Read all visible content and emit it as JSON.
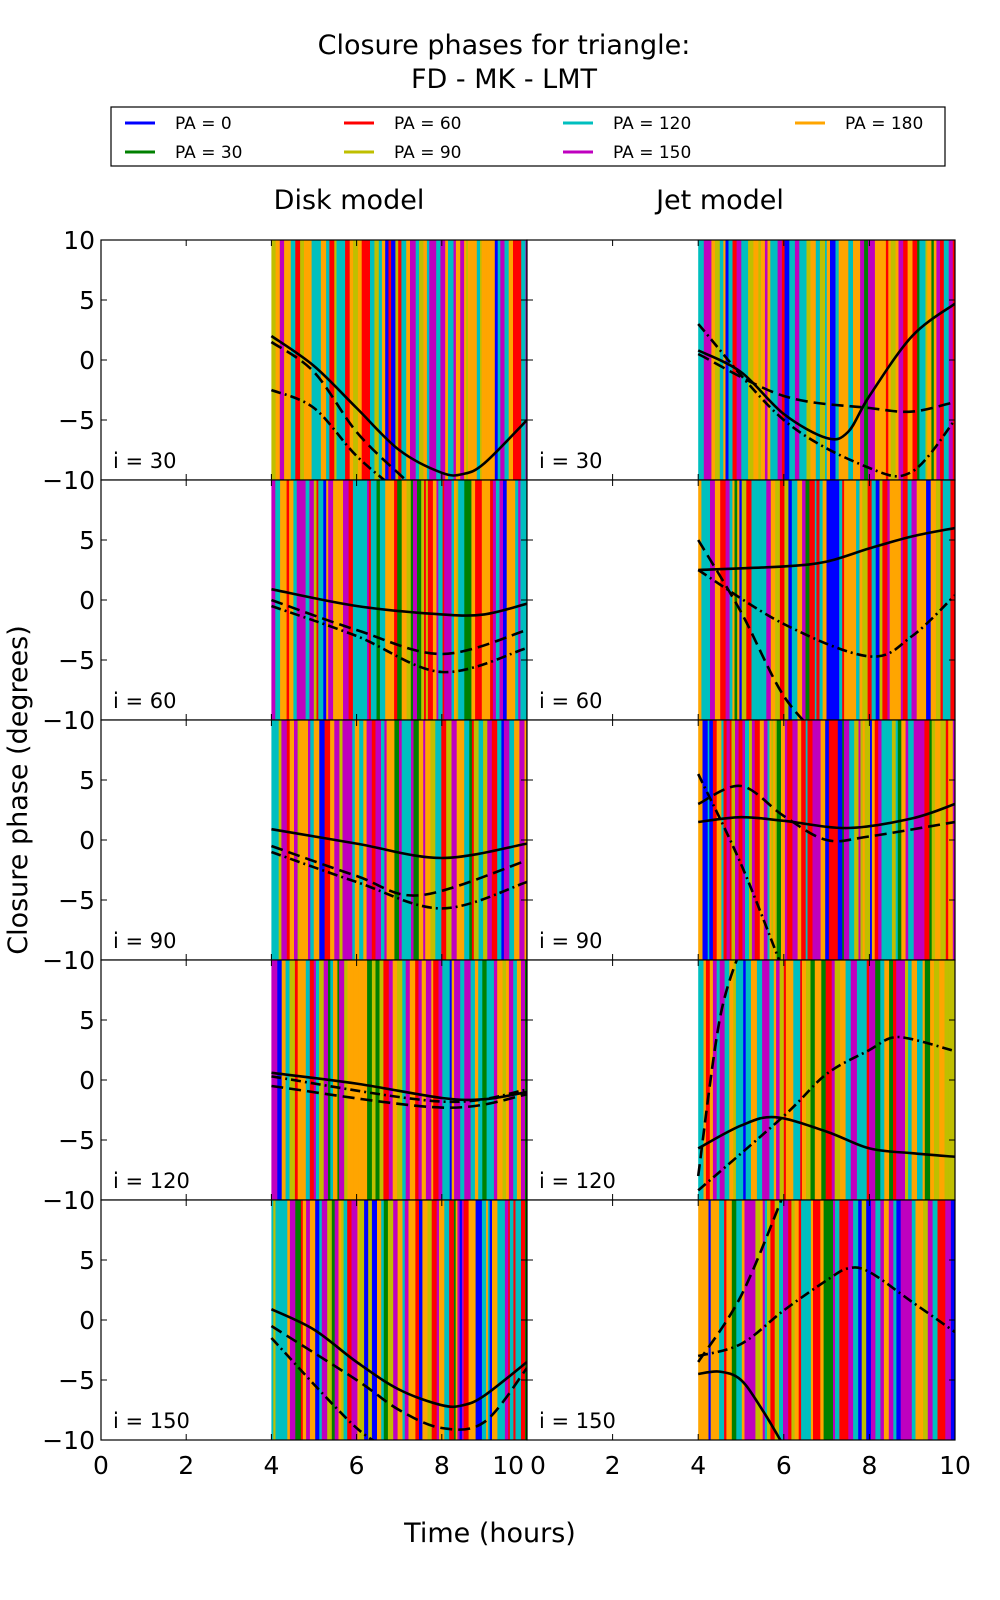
{
  "chart_data": {
    "type": "line",
    "title": "Closure phases for triangle:",
    "subtitle": "FD - MK - LMT",
    "xlabel": "Time (hours)",
    "ylabel": "Closure phase (degrees)",
    "xlim": [
      0,
      10
    ],
    "ylim": [
      -10,
      10
    ],
    "xticks": [
      0,
      2,
      4,
      6,
      8,
      10
    ],
    "yticks": [
      10,
      5,
      0,
      -5,
      -10
    ],
    "ytick_labels": [
      "10",
      "5",
      "0",
      "−5",
      "−10"
    ],
    "xtick_labels": [
      "0",
      "2",
      "4",
      "6",
      "8",
      "10"
    ],
    "grid": false,
    "legend_placement": "top",
    "legend": [
      {
        "label": "PA = 0",
        "color": "#0000ff"
      },
      {
        "label": "PA = 30",
        "color": "#008000"
      },
      {
        "label": "PA = 60",
        "color": "#ff0000"
      },
      {
        "label": "PA = 90",
        "color": "#bfbf00"
      },
      {
        "label": "PA = 120",
        "color": "#00bfbf"
      },
      {
        "label": "PA = 150",
        "color": "#bf00bf"
      },
      {
        "label": "PA = 180",
        "color": "#ffa500"
      }
    ],
    "columns": [
      "Disk model",
      "Jet model"
    ],
    "data_time_range": [
      4,
      10
    ],
    "panels": [
      {
        "column": 0,
        "label": "i = 30",
        "curves": [
          {
            "style": "solid",
            "x": [
              4,
              5,
              6,
              7,
              8,
              8.5,
              9,
              10
            ],
            "y": [
              2,
              -0.5,
              -4,
              -7.5,
              -9.4,
              -9.5,
              -8.6,
              -5
            ]
          },
          {
            "style": "dashed",
            "x": [
              4,
              5,
              6,
              7,
              7.5
            ],
            "y": [
              1.5,
              -1,
              -6,
              -9.5,
              -11
            ]
          },
          {
            "style": "dashdot",
            "x": [
              4,
              5,
              6,
              7
            ],
            "y": [
              -2.5,
              -4,
              -8,
              -11
            ]
          }
        ]
      },
      {
        "column": 1,
        "label": "i = 30",
        "curves": [
          {
            "style": "solid",
            "x": [
              4,
              5,
              6,
              7,
              7.5,
              8,
              9,
              10
            ],
            "y": [
              0.8,
              -1,
              -4.5,
              -6.5,
              -6,
              -3,
              2,
              4.7
            ]
          },
          {
            "style": "dashed",
            "x": [
              4,
              6,
              8,
              9,
              10
            ],
            "y": [
              0.5,
              -3,
              -4,
              -4.3,
              -3.5
            ]
          },
          {
            "style": "dashdot",
            "x": [
              4,
              6,
              8,
              9,
              10
            ],
            "y": [
              3,
              -5,
              -9,
              -9.3,
              -5
            ]
          }
        ]
      },
      {
        "column": 0,
        "label": "i = 60",
        "curves": [
          {
            "style": "solid",
            "x": [
              4,
              6,
              8,
              9,
              10
            ],
            "y": [
              0.9,
              -0.5,
              -1.2,
              -1.2,
              -0.3
            ]
          },
          {
            "style": "dashed",
            "x": [
              4,
              6,
              8,
              10
            ],
            "y": [
              0,
              -2.5,
              -4.5,
              -2.5
            ]
          },
          {
            "style": "dashdot",
            "x": [
              4,
              6,
              8,
              10
            ],
            "y": [
              -0.5,
              -3,
              -6,
              -4
            ]
          }
        ]
      },
      {
        "column": 1,
        "label": "i = 60",
        "curves": [
          {
            "style": "solid",
            "x": [
              4,
              6,
              7,
              8,
              9,
              10
            ],
            "y": [
              2.5,
              2.8,
              3.2,
              4.3,
              5.3,
              6
            ]
          },
          {
            "style": "dashdot",
            "x": [
              4,
              6,
              8,
              9,
              10
            ],
            "y": [
              2.5,
              -2,
              -4.7,
              -3,
              0.4
            ]
          },
          {
            "style": "dashed",
            "x": [
              4,
              5,
              6,
              7
            ],
            "y": [
              5,
              -1,
              -8,
              -12
            ]
          }
        ]
      },
      {
        "column": 0,
        "label": "i = 90",
        "curves": [
          {
            "style": "solid",
            "x": [
              4,
              6,
              8,
              10
            ],
            "y": [
              0.9,
              -0.3,
              -1.5,
              -0.3
            ]
          },
          {
            "style": "dashed",
            "x": [
              4,
              6,
              7.5,
              10
            ],
            "y": [
              -0.5,
              -3,
              -4.6,
              -1.7
            ]
          },
          {
            "style": "dashdot",
            "x": [
              4,
              6,
              8,
              10
            ],
            "y": [
              -1,
              -3.5,
              -5.7,
              -3.5
            ]
          }
        ]
      },
      {
        "column": 1,
        "label": "i = 90",
        "curves": [
          {
            "style": "solid",
            "x": [
              4,
              5,
              6,
              7.5,
              9,
              10
            ],
            "y": [
              1.5,
              1.9,
              1.6,
              1,
              1.8,
              3
            ]
          },
          {
            "style": "dashed",
            "x": [
              4,
              5,
              6,
              7,
              8,
              10
            ],
            "y": [
              3,
              4.5,
              2,
              0,
              0.3,
              1.5
            ]
          },
          {
            "style": "dashdot",
            "x": [
              4,
              5,
              6
            ],
            "y": [
              5.5,
              -2,
              -11
            ]
          }
        ]
      },
      {
        "column": 0,
        "label": "i = 120",
        "curves": [
          {
            "style": "solid",
            "x": [
              4,
              6,
              8,
              9,
              10
            ],
            "y": [
              0.6,
              -0.3,
              -1.5,
              -1.6,
              -1
            ]
          },
          {
            "style": "dashed",
            "x": [
              4,
              8,
              10
            ],
            "y": [
              -0.5,
              -2.3,
              -1.2
            ]
          },
          {
            "style": "dashdot",
            "x": [
              4,
              8,
              10
            ],
            "y": [
              0.3,
              -1.8,
              -0.8
            ]
          }
        ]
      },
      {
        "column": 1,
        "label": "i = 120",
        "curves": [
          {
            "style": "solid",
            "x": [
              4,
              5,
              5.8,
              7,
              8,
              9,
              10
            ],
            "y": [
              -5.7,
              -3.8,
              -3.1,
              -4.3,
              -5.7,
              -6.1,
              -6.4
            ]
          },
          {
            "style": "dashdot",
            "x": [
              4,
              6,
              7,
              8,
              8.5,
              9,
              10
            ],
            "y": [
              -9.2,
              -3,
              0.5,
              2.5,
              3.5,
              3.4,
              2.4
            ]
          },
          {
            "style": "dashed",
            "x": [
              4,
              4.5,
              5
            ],
            "y": [
              -8,
              5,
              11
            ]
          }
        ]
      },
      {
        "column": 0,
        "label": "i = 150",
        "curves": [
          {
            "style": "solid",
            "x": [
              4,
              5,
              6,
              7,
              8,
              8.5,
              9,
              10
            ],
            "y": [
              0.9,
              -0.8,
              -3.5,
              -5.8,
              -7.1,
              -7.1,
              -6.3,
              -3.5
            ]
          },
          {
            "style": "dashed",
            "x": [
              4,
              6,
              7,
              8,
              9,
              10
            ],
            "y": [
              -0.5,
              -5,
              -7.5,
              -9,
              -8.5,
              -4
            ]
          },
          {
            "style": "dashdot",
            "x": [
              4,
              6,
              7
            ],
            "y": [
              -1.5,
              -9,
              -11
            ]
          }
        ]
      },
      {
        "column": 1,
        "label": "i = 150",
        "curves": [
          {
            "style": "solid",
            "x": [
              4,
              4.5,
              5,
              5.5,
              6
            ],
            "y": [
              -4.5,
              -4.3,
              -5,
              -7.5,
              -10.5
            ]
          },
          {
            "style": "dashdot",
            "x": [
              4,
              5,
              6,
              7,
              7.5,
              8,
              9,
              10
            ],
            "y": [
              -3,
              -2,
              0.8,
              3.3,
              4.3,
              4,
              1.5,
              -1
            ]
          },
          {
            "style": "dashed",
            "x": [
              4,
              5,
              6
            ],
            "y": [
              -3.5,
              2,
              10.5
            ]
          }
        ]
      }
    ]
  }
}
